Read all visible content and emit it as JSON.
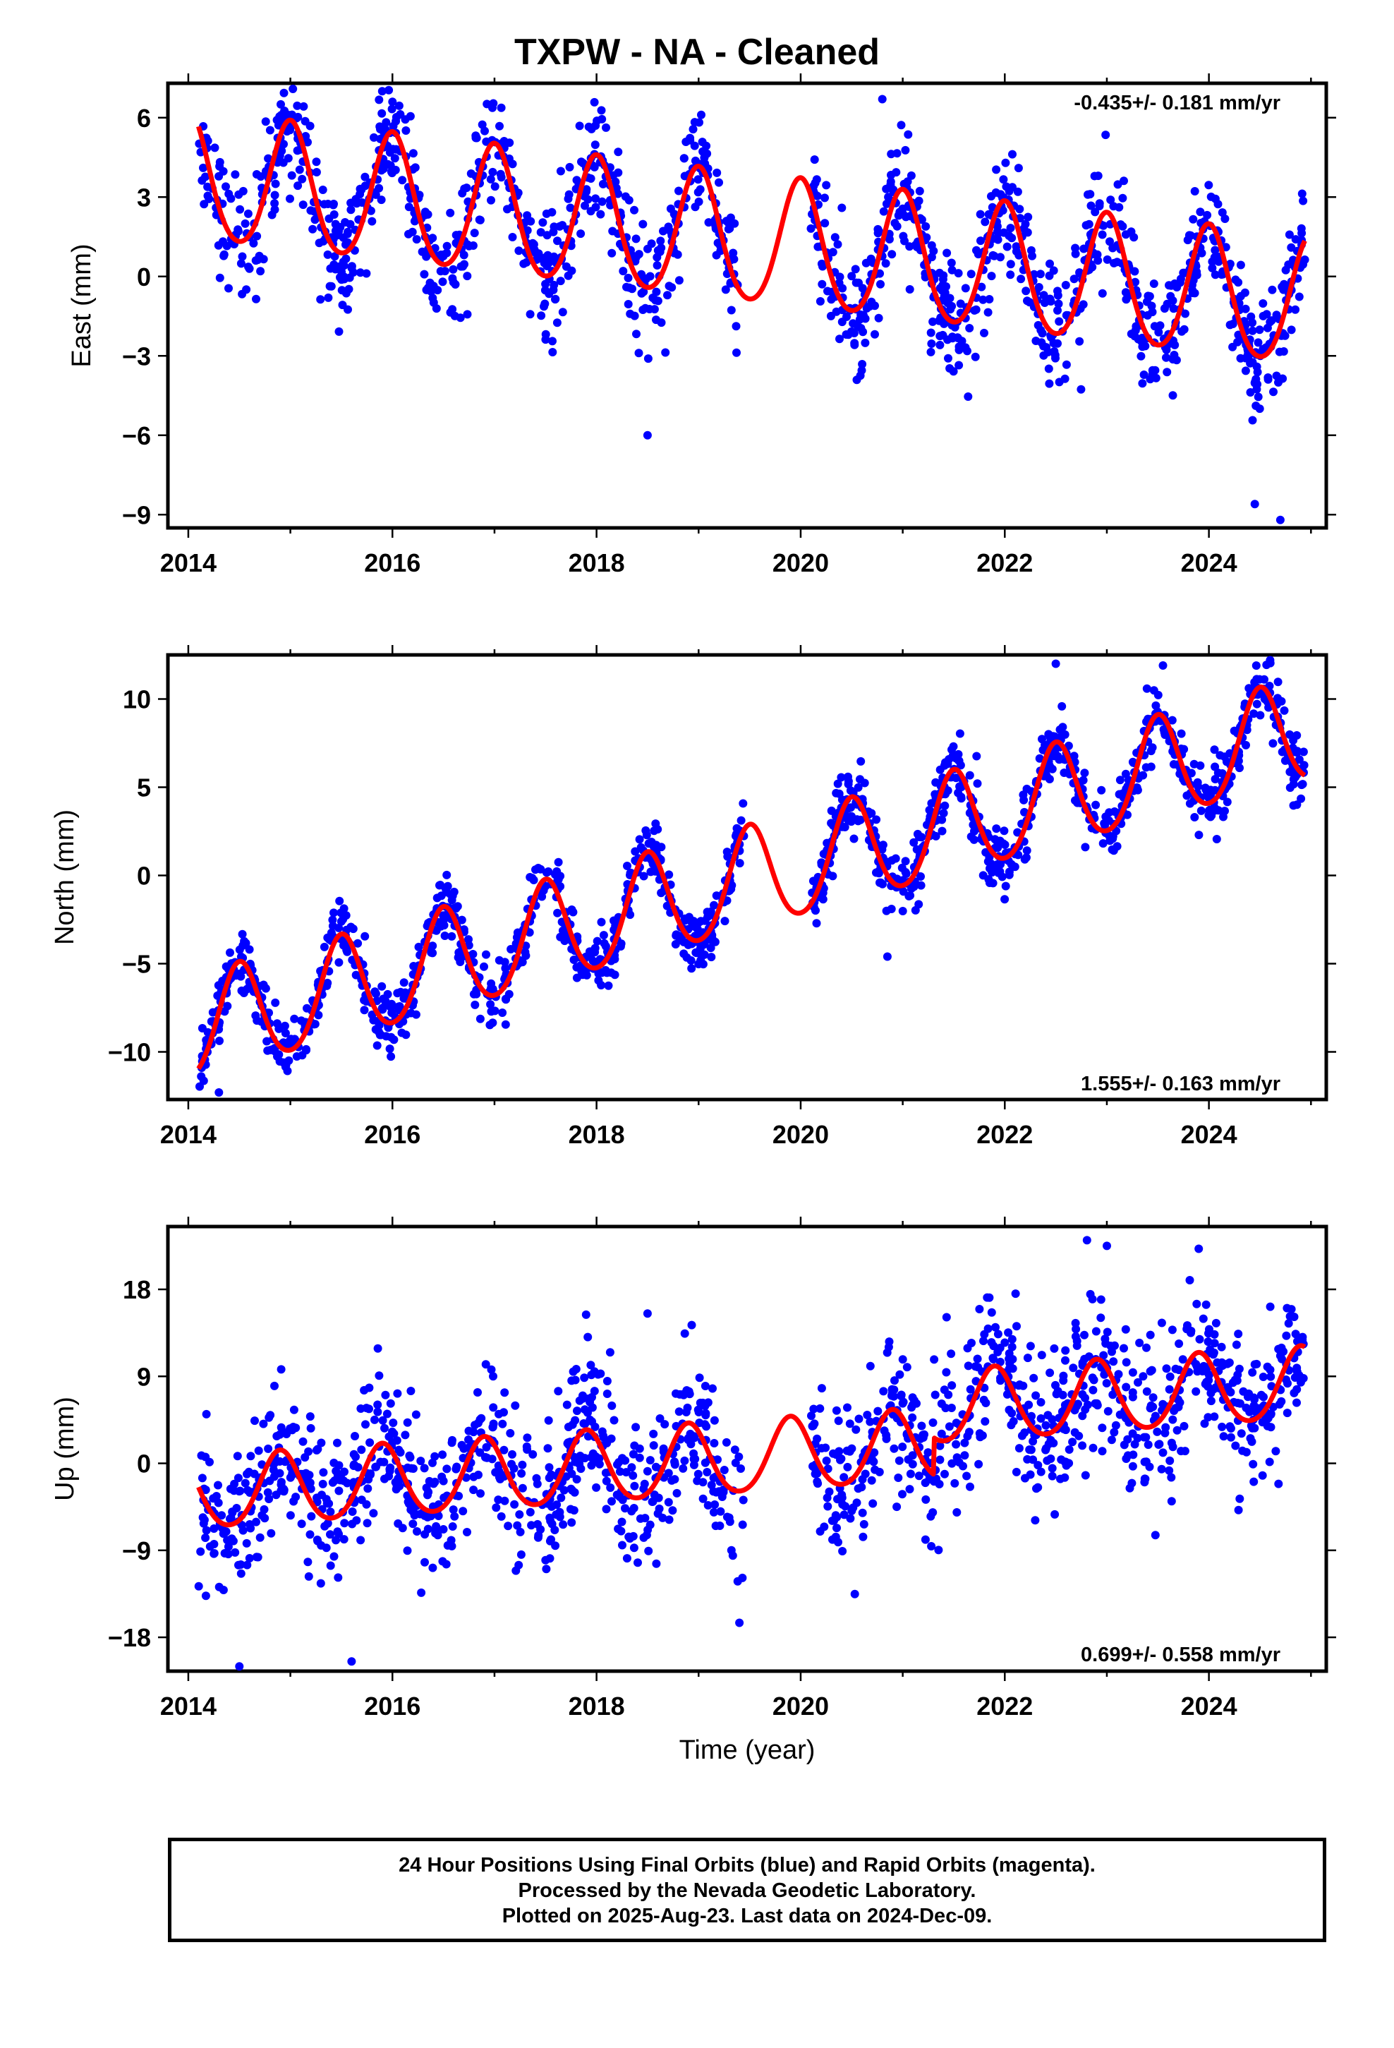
{
  "title": "TXPW  - NA - Cleaned",
  "footer": {
    "line1": "24 Hour Positions Using Final Orbits (blue) and Rapid Orbits (magenta).",
    "line2": "Processed by the Nevada Geodetic Laboratory.",
    "line3": "Plotted on 2025-Aug-23. Last data on 2024-Dec-09."
  },
  "colors": {
    "observations": "#0000ff",
    "model_fit": "#ff0000",
    "frame": "#000000"
  },
  "chart_data": [
    {
      "type": "scatter",
      "panel": "east",
      "ylabel": "East (mm)",
      "xlabel": "",
      "rate_label": "-0.435+/- 0.181 mm/yr",
      "rate_position": "top-right",
      "xlim": [
        2013.8,
        2025.15
      ],
      "ylim": [
        -9.5,
        7.3
      ],
      "xticks": [
        2014,
        2016,
        2018,
        2020,
        2022,
        2024
      ],
      "yticks": [
        6,
        3,
        0,
        -3,
        -6,
        -9
      ],
      "ytick_labels": [
        "6",
        "3",
        "0",
        "−3",
        "−6",
        "−9"
      ],
      "data_range": [
        2014.1,
        2024.94
      ],
      "gap": [
        2019.45,
        2020.1
      ],
      "fit": {
        "offset": 1.3,
        "trend_mm_per_yr": -0.435,
        "annual_amplitude": 2.4,
        "annual_peak_frac": 0.0,
        "semiannual_amplitude": 0.25,
        "reference_year": 2019.5
      },
      "noise_sd": 1.15,
      "n_points": 1500,
      "outliers": [
        [
          2015.9,
          7.0
        ],
        [
          2020.8,
          6.7
        ],
        [
          2016.0,
          6.6
        ],
        [
          2018.5,
          -6.0
        ],
        [
          2024.7,
          -9.2
        ],
        [
          2024.45,
          -8.6
        ]
      ]
    },
    {
      "type": "scatter",
      "panel": "north",
      "ylabel": "North (mm)",
      "xlabel": "",
      "rate_label": "1.555+/- 0.163 mm/yr",
      "rate_position": "bottom-right",
      "xlim": [
        2013.8,
        2025.15
      ],
      "ylim": [
        -12.7,
        12.5
      ],
      "xticks": [
        2014,
        2016,
        2018,
        2020,
        2022,
        2024
      ],
      "yticks": [
        10,
        5,
        0,
        -5,
        -10
      ],
      "ytick_labels": [
        "10",
        "5",
        "0",
        "−5",
        "−10"
      ],
      "data_range": [
        2014.1,
        2024.94
      ],
      "gap": [
        2019.45,
        2020.1
      ],
      "fit": {
        "offset": -0.3,
        "trend_mm_per_yr": 1.555,
        "annual_amplitude": 2.9,
        "annual_peak_frac": 0.5,
        "semiannual_amplitude": 0.3,
        "reference_year": 2019.5
      },
      "noise_sd": 0.9,
      "n_points": 1500,
      "outliers": [
        [
          2020.85,
          -4.6
        ],
        [
          2022.5,
          12.0
        ],
        [
          2024.6,
          12.2
        ],
        [
          2023.55,
          11.9
        ],
        [
          2014.3,
          -12.3
        ]
      ]
    },
    {
      "type": "scatter",
      "panel": "up",
      "ylabel": "Up (mm)",
      "xlabel": "Time (year)",
      "rate_label": "0.699+/- 0.558 mm/yr",
      "rate_position": "bottom-right",
      "xlim": [
        2013.8,
        2025.15
      ],
      "ylim": [
        -21.5,
        24.5
      ],
      "xticks": [
        2014,
        2016,
        2018,
        2020,
        2022,
        2024
      ],
      "yticks": [
        18,
        9,
        0,
        -9,
        -18
      ],
      "ytick_labels": [
        "18",
        "9",
        "0",
        "−9",
        "−18"
      ],
      "data_range": [
        2014.1,
        2024.94
      ],
      "gap": [
        2019.45,
        2020.1
      ],
      "fit": {
        "offset": 0.5,
        "trend_mm_per_yr": 0.699,
        "annual_amplitude": 3.7,
        "annual_peak_frac": 0.9,
        "semiannual_amplitude": 0.4,
        "reference_year": 2019.5,
        "step_year": 2021.3,
        "step_mm": 3.8
      },
      "noise_sd": 3.9,
      "n_points": 1500,
      "outliers": [
        [
          2014.5,
          -21.0
        ],
        [
          2015.6,
          -20.5
        ],
        [
          2023.0,
          22.5
        ],
        [
          2023.9,
          22.2
        ],
        [
          2018.5,
          15.5
        ],
        [
          2019.4,
          -16.5
        ]
      ]
    }
  ]
}
